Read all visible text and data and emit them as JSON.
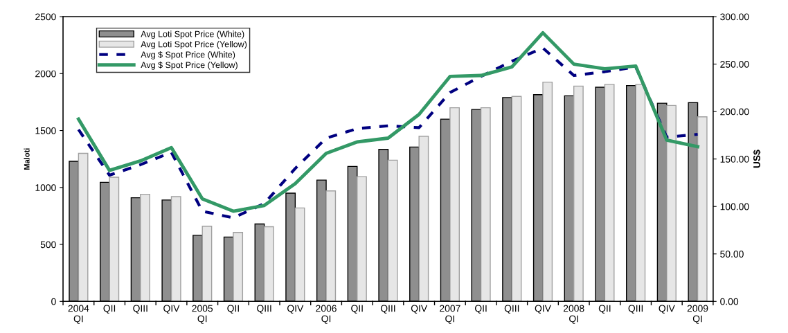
{
  "chart_data": {
    "type": "bar",
    "categories": [
      "2004\nQI",
      "QII",
      "QIII",
      "QIV",
      "2005\nQI",
      "QII",
      "QIII",
      "QIV",
      "2006\nQI",
      "QII",
      "QIII",
      "QIV",
      "2007\nQI",
      "QII",
      "QIII",
      "QIV",
      "2008\nQI",
      "QII",
      "QIII",
      "QIV",
      "2009\nQI"
    ],
    "series": [
      {
        "name": "Avg Loti Spot Price (White)",
        "color": "#8f8f8f",
        "values": [
          1230,
          1045,
          910,
          890,
          580,
          565,
          680,
          950,
          1065,
          1185,
          1335,
          1355,
          1600,
          1685,
          1790,
          1815,
          1805,
          1880,
          1895,
          1740,
          1745
        ]
      },
      {
        "name": "Avg Loti Spot Price (Yellow)",
        "color": "#e6e6e6",
        "values": [
          1300,
          1090,
          940,
          920,
          660,
          605,
          655,
          820,
          970,
          1095,
          1240,
          1450,
          1700,
          1700,
          1800,
          1925,
          1890,
          1905,
          1905,
          1720,
          1620
        ]
      },
      {
        "name": "Avg $ Spot Price (White)",
        "type": "line",
        "axis": "y2",
        "line_style": "dashed",
        "color": "#000080",
        "values": [
          181,
          133,
          144,
          157,
          95,
          88,
          103,
          140,
          172,
          182,
          185,
          183,
          220,
          237,
          253,
          267,
          238,
          242,
          247,
          173,
          176
        ]
      },
      {
        "name": "Avg $ Spot Price (Yellow)",
        "type": "line",
        "axis": "y2",
        "line_style": "solid",
        "color": "#339966",
        "values": [
          192,
          138,
          148,
          162,
          108,
          95,
          101,
          124,
          156,
          168,
          172,
          197,
          237,
          238,
          247,
          283,
          250,
          245,
          248,
          170,
          163
        ]
      }
    ],
    "ylabel": "Maloti",
    "y2label": "US$",
    "ylim": [
      0,
      2500
    ],
    "yticks": [
      0,
      500,
      1000,
      1500,
      2000,
      2500
    ],
    "y2lim": [
      0,
      300
    ],
    "y2ticks": [
      {
        "value": 0,
        "label": "0.00"
      },
      {
        "value": 50,
        "label": "50.00"
      },
      {
        "value": 100,
        "label": "100.00"
      },
      {
        "value": 150,
        "label": "150.00"
      },
      {
        "value": 200,
        "label": "200.00"
      },
      {
        "value": 250,
        "label": "250.00"
      },
      {
        "value": 300,
        "label": "300.00"
      }
    ],
    "legend": "top left",
    "grid": false,
    "marker": "none"
  }
}
